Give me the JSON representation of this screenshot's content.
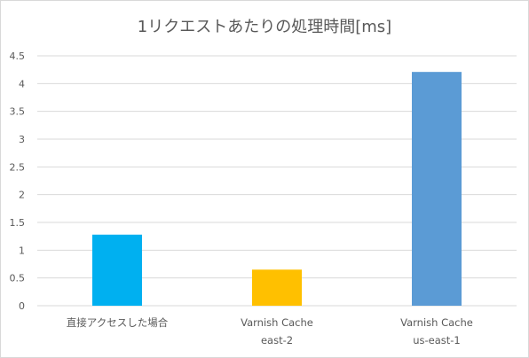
{
  "chart_data": {
    "type": "bar",
    "title": "1リクエストあたりの処理時間[ms]",
    "categories": [
      [
        "直接アクセスした場合"
      ],
      [
        "Varnish Cache",
        "east-2"
      ],
      [
        "Varnish Cache",
        "us-east-1"
      ]
    ],
    "values": [
      1.28,
      0.65,
      4.21
    ],
    "colors": [
      "#00b0f0",
      "#ffc000",
      "#5b9bd5"
    ],
    "ylim": [
      0,
      4.5
    ],
    "yticks": [
      "0",
      "0.5",
      "1",
      "1.5",
      "2",
      "2.5",
      "3",
      "3.5",
      "4",
      "4.5"
    ],
    "grid": true,
    "legend": "none",
    "xlabel": "",
    "ylabel": ""
  }
}
